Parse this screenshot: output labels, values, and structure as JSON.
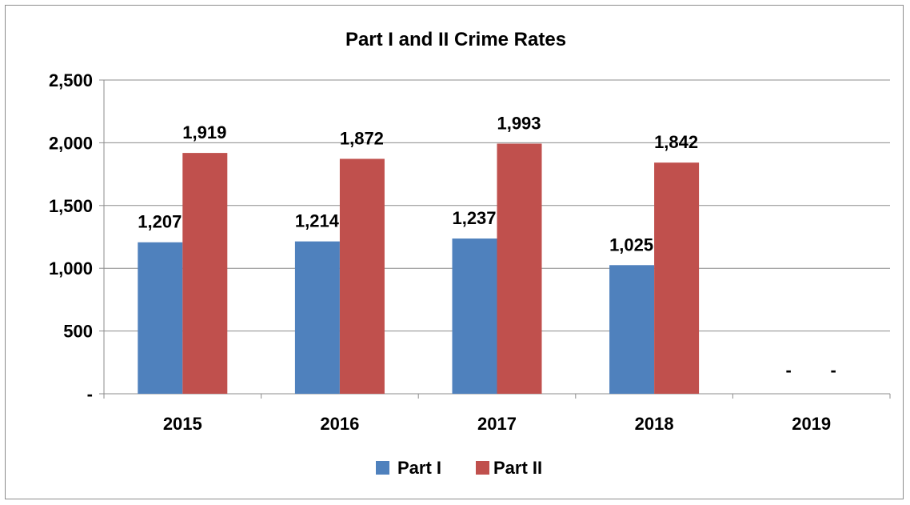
{
  "chart_data": {
    "type": "bar",
    "title": "Part I and II Crime Rates",
    "xlabel": "",
    "ylabel": "",
    "categories": [
      "2015",
      "2016",
      "2017",
      "2018",
      "2019"
    ],
    "series": [
      {
        "name": "Part I",
        "color": "#4f81bd",
        "values": [
          1207,
          1214,
          1237,
          1025,
          0
        ],
        "labels": [
          "1,207",
          "1,214",
          "1,237",
          "1,025",
          "-"
        ]
      },
      {
        "name": "Part II",
        "color": "#c0504d",
        "values": [
          1919,
          1872,
          1993,
          1842,
          0
        ],
        "labels": [
          "1,919",
          "1,872",
          "1,993",
          "1,842",
          "-"
        ]
      }
    ],
    "ylim": [
      0,
      2500
    ],
    "yticks": [
      0,
      500,
      1000,
      1500,
      2000,
      2500
    ],
    "ytick_labels": [
      "-",
      "500",
      "1,000",
      "1,500",
      "2,000",
      "2,500"
    ],
    "grid": true,
    "legend": "bottom"
  }
}
